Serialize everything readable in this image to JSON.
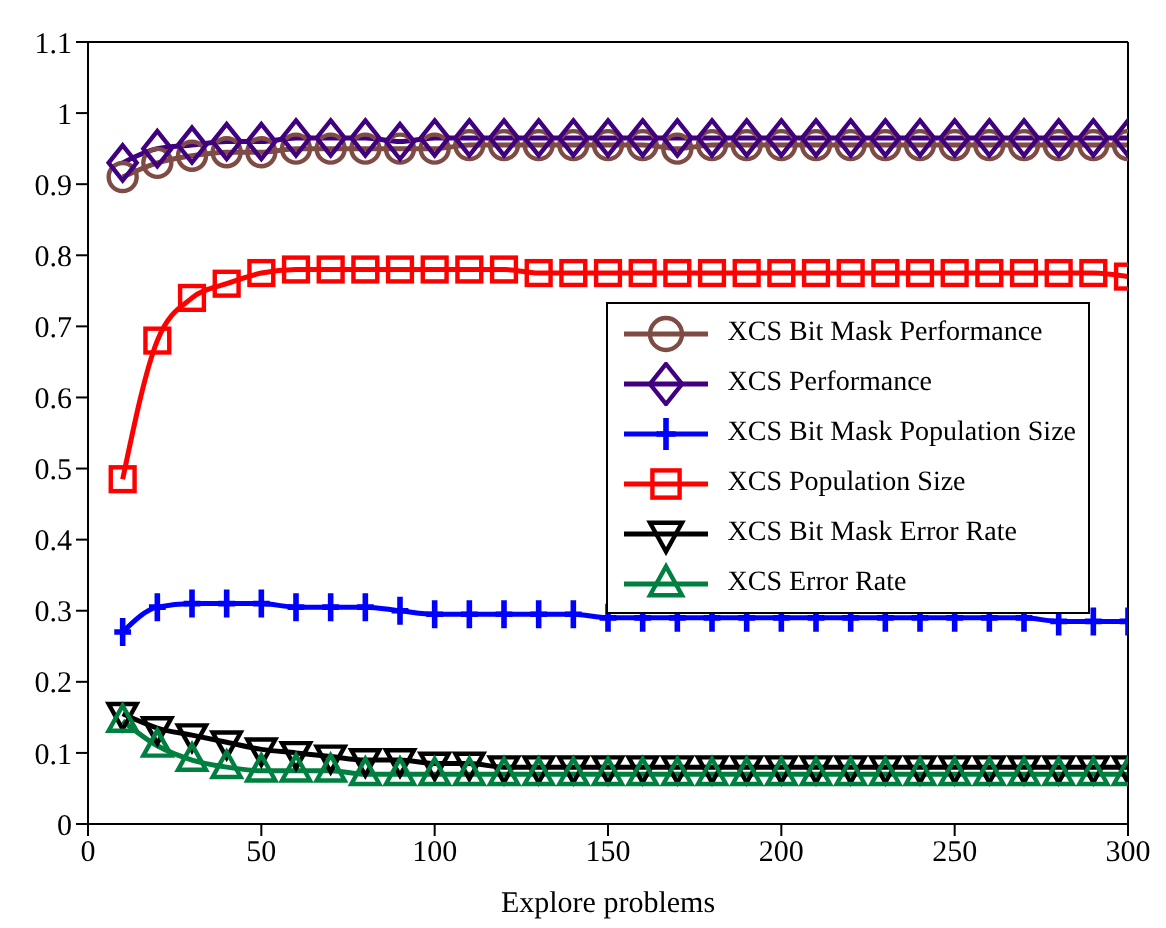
{
  "chart_data": {
    "type": "line",
    "xlabel": "Explore problems",
    "x": [
      10,
      20,
      30,
      40,
      50,
      60,
      70,
      80,
      90,
      100,
      110,
      120,
      130,
      140,
      150,
      160,
      170,
      180,
      190,
      200,
      210,
      220,
      230,
      240,
      250,
      260,
      270,
      280,
      290,
      300
    ],
    "series": [
      {
        "name": "XCS Bit Mask Performance",
        "color": "#7e4b45",
        "marker": "circle",
        "values": [
          0.91,
          0.93,
          0.94,
          0.945,
          0.945,
          0.95,
          0.95,
          0.95,
          0.95,
          0.95,
          0.955,
          0.955,
          0.955,
          0.955,
          0.955,
          0.955,
          0.95,
          0.955,
          0.955,
          0.955,
          0.955,
          0.955,
          0.955,
          0.955,
          0.955,
          0.955,
          0.955,
          0.955,
          0.955,
          0.955
        ]
      },
      {
        "name": "XCS Performance",
        "color": "#400080",
        "marker": "diamond",
        "values": [
          0.93,
          0.95,
          0.955,
          0.96,
          0.96,
          0.965,
          0.965,
          0.965,
          0.96,
          0.965,
          0.965,
          0.965,
          0.965,
          0.965,
          0.965,
          0.965,
          0.965,
          0.965,
          0.965,
          0.965,
          0.965,
          0.965,
          0.965,
          0.965,
          0.965,
          0.965,
          0.965,
          0.965,
          0.965,
          0.965
        ]
      },
      {
        "name": "XCS Bit Mask Population Size",
        "color": "#0000ff",
        "marker": "cross",
        "values": [
          0.27,
          0.305,
          0.31,
          0.31,
          0.31,
          0.305,
          0.305,
          0.305,
          0.3,
          0.295,
          0.295,
          0.295,
          0.295,
          0.295,
          0.29,
          0.29,
          0.29,
          0.29,
          0.29,
          0.29,
          0.29,
          0.29,
          0.29,
          0.29,
          0.29,
          0.29,
          0.29,
          0.285,
          0.285,
          0.285
        ]
      },
      {
        "name": "XCS Population Size",
        "color": "#ff0000",
        "marker": "square",
        "values": [
          0.485,
          0.68,
          0.74,
          0.76,
          0.775,
          0.78,
          0.78,
          0.78,
          0.78,
          0.78,
          0.78,
          0.78,
          0.775,
          0.775,
          0.775,
          0.775,
          0.775,
          0.775,
          0.775,
          0.775,
          0.775,
          0.775,
          0.775,
          0.775,
          0.775,
          0.775,
          0.775,
          0.775,
          0.775,
          0.77
        ]
      },
      {
        "name": "XCS Bit Mask Error Rate",
        "color": "#000000",
        "marker": "triangle-down",
        "values": [
          0.155,
          0.135,
          0.125,
          0.115,
          0.105,
          0.1,
          0.095,
          0.09,
          0.09,
          0.085,
          0.085,
          0.08,
          0.08,
          0.08,
          0.08,
          0.08,
          0.08,
          0.08,
          0.08,
          0.08,
          0.08,
          0.08,
          0.08,
          0.08,
          0.08,
          0.08,
          0.08,
          0.08,
          0.08,
          0.08
        ]
      },
      {
        "name": "XCS Error Rate",
        "color": "#008040",
        "marker": "triangle",
        "values": [
          0.145,
          0.11,
          0.09,
          0.08,
          0.075,
          0.075,
          0.075,
          0.07,
          0.07,
          0.07,
          0.07,
          0.07,
          0.07,
          0.07,
          0.07,
          0.07,
          0.07,
          0.07,
          0.07,
          0.07,
          0.07,
          0.07,
          0.07,
          0.07,
          0.07,
          0.07,
          0.07,
          0.07,
          0.07,
          0.07
        ]
      }
    ],
    "xlim": [
      0,
      300
    ],
    "xticks": [
      0,
      50,
      100,
      150,
      200,
      250,
      300
    ],
    "ylim": [
      0,
      1.1
    ],
    "yticks": [
      0,
      0.1,
      0.2,
      0.3,
      0.4,
      0.5,
      0.6,
      0.7,
      0.8,
      0.9,
      1,
      1.1
    ],
    "grid": false,
    "legend": "right",
    "line_style": "solid"
  }
}
